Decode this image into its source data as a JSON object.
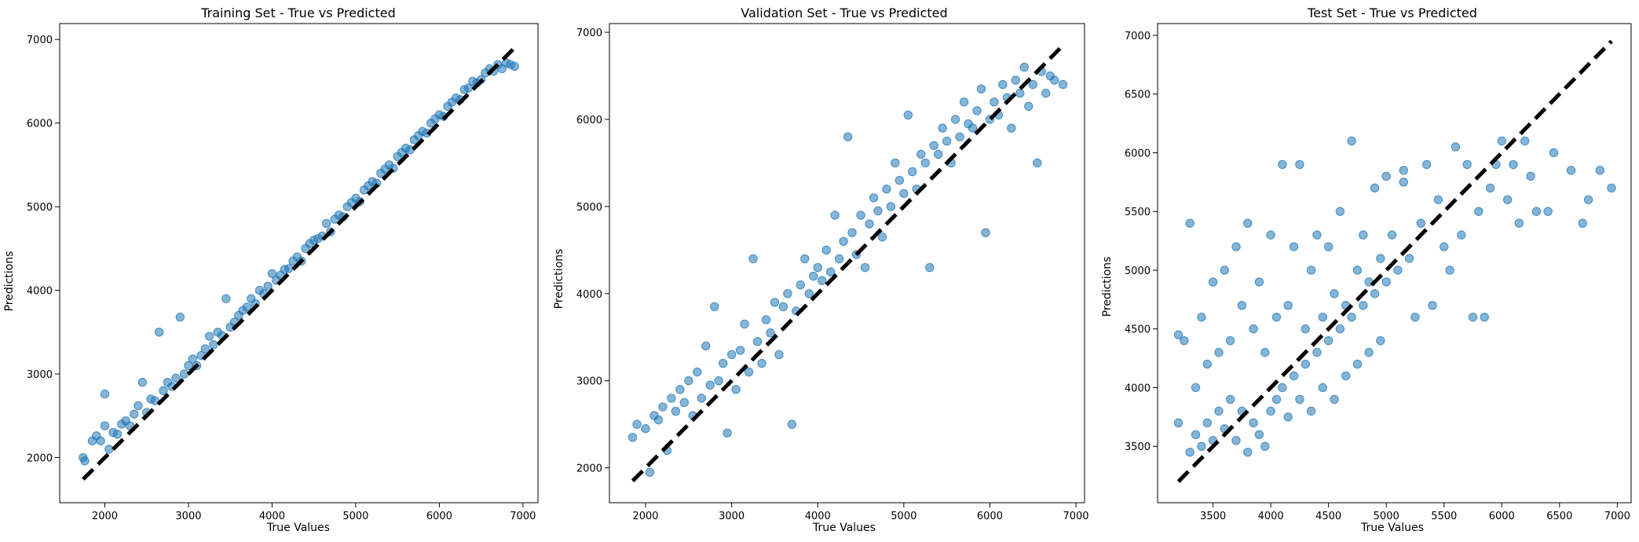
{
  "colors": {
    "point": "#1f77b4",
    "diagonal": "#000000",
    "frame": "#000000"
  },
  "chart_data": [
    {
      "type": "scatter",
      "title": "Training Set - True vs Predicted",
      "xlabel": "True Values",
      "ylabel": "Predictions",
      "xlim": [
        1460,
        7180
      ],
      "ylim": [
        1460,
        7190
      ],
      "xticks": [
        2000,
        3000,
        4000,
        5000,
        6000,
        7000
      ],
      "yticks": [
        2000,
        3000,
        4000,
        5000,
        6000,
        7000
      ],
      "grid": false,
      "diagonal": [
        1740,
        6930
      ],
      "points": [
        [
          1740,
          2000
        ],
        [
          1760,
          1960
        ],
        [
          1850,
          2200
        ],
        [
          1900,
          2260
        ],
        [
          1950,
          2200
        ],
        [
          2000,
          2380
        ],
        [
          2000,
          2760
        ],
        [
          2050,
          2100
        ],
        [
          2100,
          2300
        ],
        [
          2150,
          2280
        ],
        [
          2200,
          2400
        ],
        [
          2250,
          2440
        ],
        [
          2300,
          2380
        ],
        [
          2350,
          2520
        ],
        [
          2400,
          2620
        ],
        [
          2450,
          2900
        ],
        [
          2500,
          2540
        ],
        [
          2550,
          2700
        ],
        [
          2600,
          2680
        ],
        [
          2650,
          3500
        ],
        [
          2700,
          2800
        ],
        [
          2750,
          2900
        ],
        [
          2800,
          2850
        ],
        [
          2850,
          2950
        ],
        [
          2900,
          3680
        ],
        [
          2950,
          3000
        ],
        [
          3000,
          3100
        ],
        [
          3050,
          3180
        ],
        [
          3100,
          3100
        ],
        [
          3150,
          3220
        ],
        [
          3200,
          3300
        ],
        [
          3250,
          3450
        ],
        [
          3300,
          3350
        ],
        [
          3350,
          3500
        ],
        [
          3400,
          3460
        ],
        [
          3450,
          3900
        ],
        [
          3500,
          3560
        ],
        [
          3550,
          3620
        ],
        [
          3600,
          3700
        ],
        [
          3650,
          3760
        ],
        [
          3700,
          3800
        ],
        [
          3750,
          3900
        ],
        [
          3800,
          3840
        ],
        [
          3850,
          4000
        ],
        [
          3900,
          3960
        ],
        [
          3950,
          4050
        ],
        [
          4000,
          4200
        ],
        [
          4050,
          4120
        ],
        [
          4100,
          4180
        ],
        [
          4150,
          4250
        ],
        [
          4200,
          4260
        ],
        [
          4250,
          4350
        ],
        [
          4300,
          4400
        ],
        [
          4350,
          4350
        ],
        [
          4400,
          4500
        ],
        [
          4450,
          4560
        ],
        [
          4500,
          4600
        ],
        [
          4550,
          4620
        ],
        [
          4600,
          4650
        ],
        [
          4650,
          4800
        ],
        [
          4700,
          4700
        ],
        [
          4750,
          4850
        ],
        [
          4800,
          4900
        ],
        [
          4850,
          4880
        ],
        [
          4900,
          5000
        ],
        [
          4950,
          5050
        ],
        [
          5000,
          5100
        ],
        [
          5050,
          5060
        ],
        [
          5100,
          5200
        ],
        [
          5150,
          5250
        ],
        [
          5200,
          5300
        ],
        [
          5250,
          5280
        ],
        [
          5300,
          5400
        ],
        [
          5350,
          5450
        ],
        [
          5400,
          5500
        ],
        [
          5450,
          5460
        ],
        [
          5500,
          5600
        ],
        [
          5550,
          5650
        ],
        [
          5600,
          5700
        ],
        [
          5650,
          5680
        ],
        [
          5700,
          5800
        ],
        [
          5750,
          5850
        ],
        [
          5800,
          5900
        ],
        [
          5850,
          5880
        ],
        [
          5900,
          6000
        ],
        [
          5950,
          6050
        ],
        [
          6000,
          6100
        ],
        [
          6050,
          6080
        ],
        [
          6100,
          6200
        ],
        [
          6150,
          6250
        ],
        [
          6200,
          6300
        ],
        [
          6250,
          6280
        ],
        [
          6300,
          6400
        ],
        [
          6350,
          6420
        ],
        [
          6400,
          6500
        ],
        [
          6450,
          6480
        ],
        [
          6500,
          6520
        ],
        [
          6550,
          6600
        ],
        [
          6600,
          6650
        ],
        [
          6650,
          6620
        ],
        [
          6700,
          6700
        ],
        [
          6750,
          6650
        ],
        [
          6800,
          6720
        ],
        [
          6850,
          6700
        ],
        [
          6900,
          6680
        ]
      ]
    },
    {
      "type": "scatter",
      "title": "Validation Set - True vs Predicted",
      "xlabel": "True Values",
      "ylabel": "Predictions",
      "xlim": [
        1580,
        7100
      ],
      "ylim": [
        1600,
        7100
      ],
      "xticks": [
        2000,
        3000,
        4000,
        5000,
        6000,
        7000
      ],
      "yticks": [
        2000,
        3000,
        4000,
        5000,
        6000,
        7000
      ],
      "grid": false,
      "diagonal": [
        1850,
        6850
      ],
      "points": [
        [
          1850,
          2350
        ],
        [
          1900,
          2500
        ],
        [
          2000,
          2450
        ],
        [
          2050,
          1950
        ],
        [
          2100,
          2600
        ],
        [
          2150,
          2550
        ],
        [
          2200,
          2700
        ],
        [
          2250,
          2200
        ],
        [
          2300,
          2800
        ],
        [
          2350,
          2650
        ],
        [
          2400,
          2900
        ],
        [
          2450,
          2750
        ],
        [
          2500,
          3000
        ],
        [
          2550,
          2600
        ],
        [
          2600,
          3100
        ],
        [
          2650,
          2800
        ],
        [
          2700,
          3400
        ],
        [
          2750,
          2950
        ],
        [
          2800,
          3850
        ],
        [
          2850,
          3000
        ],
        [
          2900,
          3200
        ],
        [
          2950,
          2400
        ],
        [
          3000,
          3300
        ],
        [
          3050,
          2900
        ],
        [
          3100,
          3350
        ],
        [
          3150,
          3650
        ],
        [
          3200,
          3100
        ],
        [
          3250,
          4400
        ],
        [
          3300,
          3450
        ],
        [
          3350,
          3200
        ],
        [
          3400,
          3700
        ],
        [
          3450,
          3550
        ],
        [
          3500,
          3900
        ],
        [
          3550,
          3300
        ],
        [
          3600,
          3850
        ],
        [
          3650,
          4000
        ],
        [
          3700,
          2500
        ],
        [
          3750,
          3800
        ],
        [
          3800,
          4100
        ],
        [
          3850,
          4400
        ],
        [
          3900,
          4000
        ],
        [
          3950,
          4200
        ],
        [
          4000,
          4300
        ],
        [
          4050,
          4150
        ],
        [
          4100,
          4500
        ],
        [
          4150,
          4250
        ],
        [
          4200,
          4900
        ],
        [
          4250,
          4400
        ],
        [
          4300,
          4600
        ],
        [
          4350,
          5800
        ],
        [
          4400,
          4700
        ],
        [
          4450,
          4450
        ],
        [
          4500,
          4900
        ],
        [
          4550,
          4300
        ],
        [
          4600,
          4800
        ],
        [
          4650,
          5100
        ],
        [
          4700,
          4950
        ],
        [
          4750,
          4650
        ],
        [
          4800,
          5200
        ],
        [
          4850,
          5000
        ],
        [
          4900,
          5500
        ],
        [
          4950,
          5300
        ],
        [
          5000,
          5150
        ],
        [
          5050,
          6050
        ],
        [
          5100,
          5400
        ],
        [
          5150,
          5200
        ],
        [
          5200,
          5600
        ],
        [
          5250,
          5500
        ],
        [
          5300,
          4300
        ],
        [
          5350,
          5700
        ],
        [
          5400,
          5600
        ],
        [
          5450,
          5900
        ],
        [
          5500,
          5750
        ],
        [
          5550,
          5500
        ],
        [
          5600,
          6000
        ],
        [
          5650,
          5800
        ],
        [
          5700,
          6200
        ],
        [
          5750,
          5950
        ],
        [
          5800,
          5900
        ],
        [
          5850,
          6100
        ],
        [
          5900,
          6350
        ],
        [
          5950,
          4700
        ],
        [
          6000,
          6000
        ],
        [
          6050,
          6200
        ],
        [
          6100,
          6050
        ],
        [
          6150,
          6400
        ],
        [
          6200,
          6250
        ],
        [
          6250,
          5900
        ],
        [
          6300,
          6450
        ],
        [
          6350,
          6300
        ],
        [
          6400,
          6600
        ],
        [
          6450,
          6150
        ],
        [
          6500,
          6400
        ],
        [
          6550,
          5500
        ],
        [
          6600,
          6550
        ],
        [
          6650,
          6300
        ],
        [
          6700,
          6500
        ],
        [
          6750,
          6450
        ],
        [
          6850,
          6400
        ]
      ]
    },
    {
      "type": "scatter",
      "title": "Test Set - True vs Predicted",
      "xlabel": "True Values",
      "ylabel": "Predictions",
      "xlim": [
        3020,
        7120
      ],
      "ylim": [
        3020,
        7100
      ],
      "xticks": [
        3500,
        4000,
        4500,
        5000,
        5500,
        6000,
        6500,
        7000
      ],
      "yticks": [
        3500,
        4000,
        4500,
        5000,
        5500,
        6000,
        6500,
        7000
      ],
      "grid": false,
      "diagonal": [
        3200,
        6950
      ],
      "points": [
        [
          3200,
          3700
        ],
        [
          3200,
          4450
        ],
        [
          3250,
          4400
        ],
        [
          3300,
          5400
        ],
        [
          3300,
          3450
        ],
        [
          3350,
          4000
        ],
        [
          3350,
          3600
        ],
        [
          3400,
          4600
        ],
        [
          3400,
          3500
        ],
        [
          3450,
          4200
        ],
        [
          3450,
          3700
        ],
        [
          3500,
          4900
        ],
        [
          3500,
          3550
        ],
        [
          3550,
          4300
        ],
        [
          3550,
          3800
        ],
        [
          3600,
          5000
        ],
        [
          3600,
          3650
        ],
        [
          3650,
          4400
        ],
        [
          3650,
          3900
        ],
        [
          3700,
          5200
        ],
        [
          3700,
          3550
        ],
        [
          3750,
          4700
        ],
        [
          3750,
          3800
        ],
        [
          3800,
          5400
        ],
        [
          3800,
          3450
        ],
        [
          3850,
          4500
        ],
        [
          3850,
          3700
        ],
        [
          3900,
          4900
        ],
        [
          3900,
          3600
        ],
        [
          3950,
          4300
        ],
        [
          3950,
          3500
        ],
        [
          4000,
          5300
        ],
        [
          4000,
          3800
        ],
        [
          4050,
          4600
        ],
        [
          4050,
          3900
        ],
        [
          4100,
          5900
        ],
        [
          4100,
          4000
        ],
        [
          4150,
          4700
        ],
        [
          4150,
          3750
        ],
        [
          4200,
          5200
        ],
        [
          4200,
          4100
        ],
        [
          4250,
          5900
        ],
        [
          4250,
          3900
        ],
        [
          4300,
          4500
        ],
        [
          4300,
          4200
        ],
        [
          4350,
          5000
        ],
        [
          4350,
          3800
        ],
        [
          4400,
          5300
        ],
        [
          4400,
          4300
        ],
        [
          4450,
          4600
        ],
        [
          4450,
          4000
        ],
        [
          4500,
          5200
        ],
        [
          4500,
          4400
        ],
        [
          4550,
          4800
        ],
        [
          4550,
          3900
        ],
        [
          4600,
          5500
        ],
        [
          4600,
          4500
        ],
        [
          4650,
          4700
        ],
        [
          4650,
          4100
        ],
        [
          4700,
          6100
        ],
        [
          4700,
          4600
        ],
        [
          4750,
          5000
        ],
        [
          4750,
          4200
        ],
        [
          4800,
          5300
        ],
        [
          4800,
          4700
        ],
        [
          4850,
          4900
        ],
        [
          4850,
          4300
        ],
        [
          4900,
          5700
        ],
        [
          4900,
          4800
        ],
        [
          4950,
          5100
        ],
        [
          4950,
          4400
        ],
        [
          5000,
          5800
        ],
        [
          5000,
          4900
        ],
        [
          5050,
          5300
        ],
        [
          5100,
          5000
        ],
        [
          5150,
          5850
        ],
        [
          5150,
          5750
        ],
        [
          5200,
          5100
        ],
        [
          5250,
          4600
        ],
        [
          5300,
          5400
        ],
        [
          5350,
          5900
        ],
        [
          5400,
          4700
        ],
        [
          5450,
          5600
        ],
        [
          5500,
          5200
        ],
        [
          5550,
          5000
        ],
        [
          5600,
          6050
        ],
        [
          5650,
          5300
        ],
        [
          5700,
          5900
        ],
        [
          5750,
          4600
        ],
        [
          5800,
          5500
        ],
        [
          5850,
          4600
        ],
        [
          5900,
          5700
        ],
        [
          5950,
          5900
        ],
        [
          6000,
          6100
        ],
        [
          6050,
          5600
        ],
        [
          6100,
          5900
        ],
        [
          6150,
          5400
        ],
        [
          6200,
          6100
        ],
        [
          6250,
          5800
        ],
        [
          6300,
          5500
        ],
        [
          6400,
          5500
        ],
        [
          6450,
          6000
        ],
        [
          6600,
          5850
        ],
        [
          6700,
          5400
        ],
        [
          6750,
          5600
        ],
        [
          6850,
          5850
        ],
        [
          6950,
          5700
        ]
      ]
    }
  ]
}
